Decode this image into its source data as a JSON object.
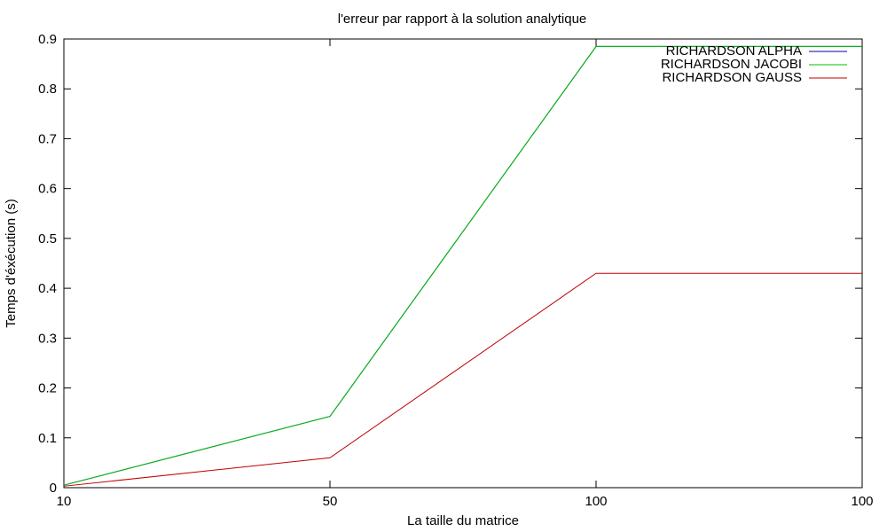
{
  "chart_data": {
    "type": "line",
    "title": "l'erreur par rapport à la solution analytique",
    "xlabel": "La taille du matrice",
    "ylabel": "Temps d'éxécution (s)",
    "categories": [
      "10",
      "50",
      "100",
      "100"
    ],
    "ylim": [
      0,
      0.9
    ],
    "yticks": [
      "0",
      "0.1",
      "0.2",
      "0.3",
      "0.4",
      "0.5",
      "0.6",
      "0.7",
      "0.8",
      "0.9"
    ],
    "grid": false,
    "legend_position": "top-right",
    "series": [
      {
        "name": "RICHARDSON ALPHA",
        "color": "#0000a0",
        "values": [
          0.005,
          0.143,
          0.885,
          0.885
        ]
      },
      {
        "name": "RICHARDSON JACOBI",
        "color": "#00c000",
        "values": [
          0.005,
          0.143,
          0.885,
          0.885
        ]
      },
      {
        "name": "RICHARDSON GAUSS",
        "color": "#c00000",
        "values": [
          0.003,
          0.06,
          0.43,
          0.43
        ]
      }
    ]
  }
}
